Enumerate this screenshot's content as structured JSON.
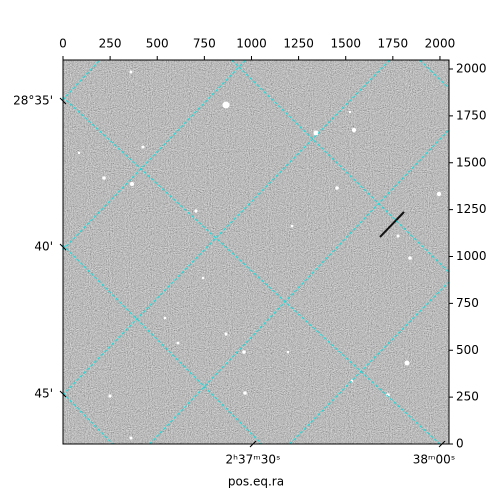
{
  "chart_data": {
    "type": "image",
    "xlabel": "pos.eq.ra",
    "xlim": [
      0,
      2048
    ],
    "xticks": [
      0,
      250,
      500,
      750,
      1000,
      1250,
      1500,
      1750,
      2000
    ],
    "ylim": [
      0,
      2048
    ],
    "yticks": [
      0,
      250,
      500,
      750,
      1000,
      1250,
      1500,
      1750,
      2000
    ],
    "ra_ticks": [
      "2ʰ37ᵐ30ˢ",
      "38ᵐ00ˢ"
    ],
    "dec_ticks": [
      "28°35'",
      "40'",
      "45'"
    ],
    "grid_color": "#00e5e5"
  }
}
